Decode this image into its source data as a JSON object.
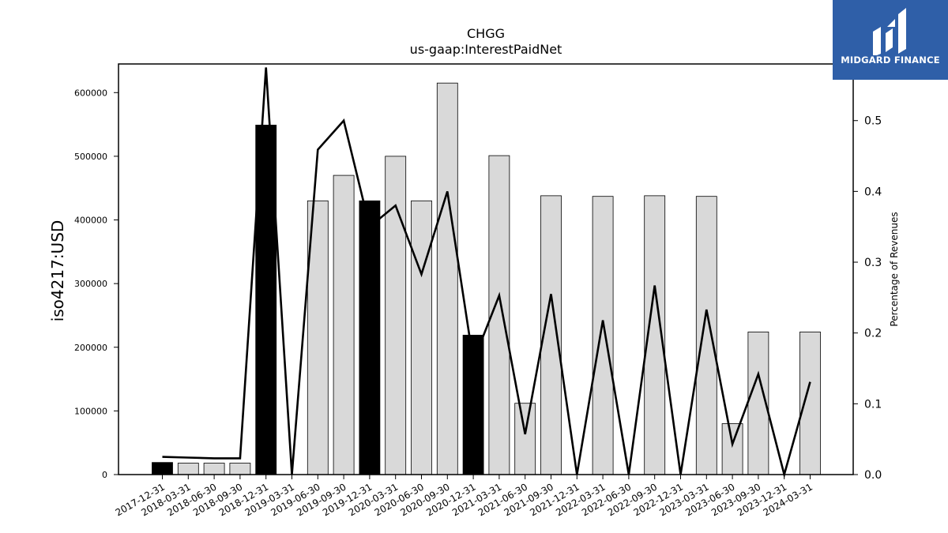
{
  "chart_data": {
    "type": "bar",
    "title": "CHGG",
    "subtitle": "us-gaap:InterestPaidNet",
    "ylabel": "iso4217:USD",
    "y2label": "Percentage of Revenues",
    "ylim": [
      0,
      645000
    ],
    "y2lim": [
      0,
      0.58
    ],
    "yticks": [
      0,
      100000,
      200000,
      300000,
      400000,
      500000,
      600000
    ],
    "y2ticks": [
      "0.0",
      "0.1",
      "0.2",
      "0.3",
      "0.4",
      "0.5"
    ],
    "categories": [
      "2017-12-31",
      "2018-03-31",
      "2018-06-30",
      "2018-09-30",
      "2018-12-31",
      "2019-03-31",
      "2019-06-30",
      "2019-09-30",
      "2019-12-31",
      "2020-03-31",
      "2020-06-30",
      "2020-09-30",
      "2020-12-31",
      "2021-03-31",
      "2021-06-30",
      "2021-09-30",
      "2021-12-31",
      "2022-03-31",
      "2022-06-30",
      "2022-09-30",
      "2022-12-31",
      "2023-03-31",
      "2023-06-30",
      "2023-09-30",
      "2023-12-31",
      "2024-03-31"
    ],
    "series": [
      {
        "kind": "bar",
        "values": [
          19000,
          18000,
          18000,
          18000,
          549000,
          0,
          430000,
          470000,
          430000,
          500000,
          430000,
          615000,
          219000,
          501000,
          112000,
          438000,
          0,
          437000,
          0,
          438000,
          0,
          437000,
          80000,
          224000,
          0,
          224000
        ],
        "annual": [
          true,
          false,
          false,
          false,
          true,
          false,
          false,
          false,
          true,
          false,
          false,
          false,
          true,
          false,
          false,
          false,
          true,
          false,
          false,
          false,
          true,
          false,
          false,
          false,
          true,
          false
        ]
      },
      {
        "kind": "line",
        "axis": "right",
        "values": [
          0.025,
          0.024,
          0.023,
          0.023,
          0.575,
          0.0,
          0.459,
          0.5,
          0.35,
          0.38,
          0.283,
          0.4,
          0.16,
          0.253,
          0.057,
          0.255,
          0.0,
          0.218,
          0.0,
          0.267,
          0.0,
          0.233,
          0.043,
          0.142,
          0.0,
          0.131
        ]
      }
    ],
    "colors": {
      "bar_annual": "#000000",
      "bar_quarterly": "#d9d9d9",
      "bar_edge": "#000000",
      "line": "#000000"
    }
  },
  "logo": {
    "text": "MIDGARD FINANCE",
    "bg": "#2f5fa8"
  }
}
